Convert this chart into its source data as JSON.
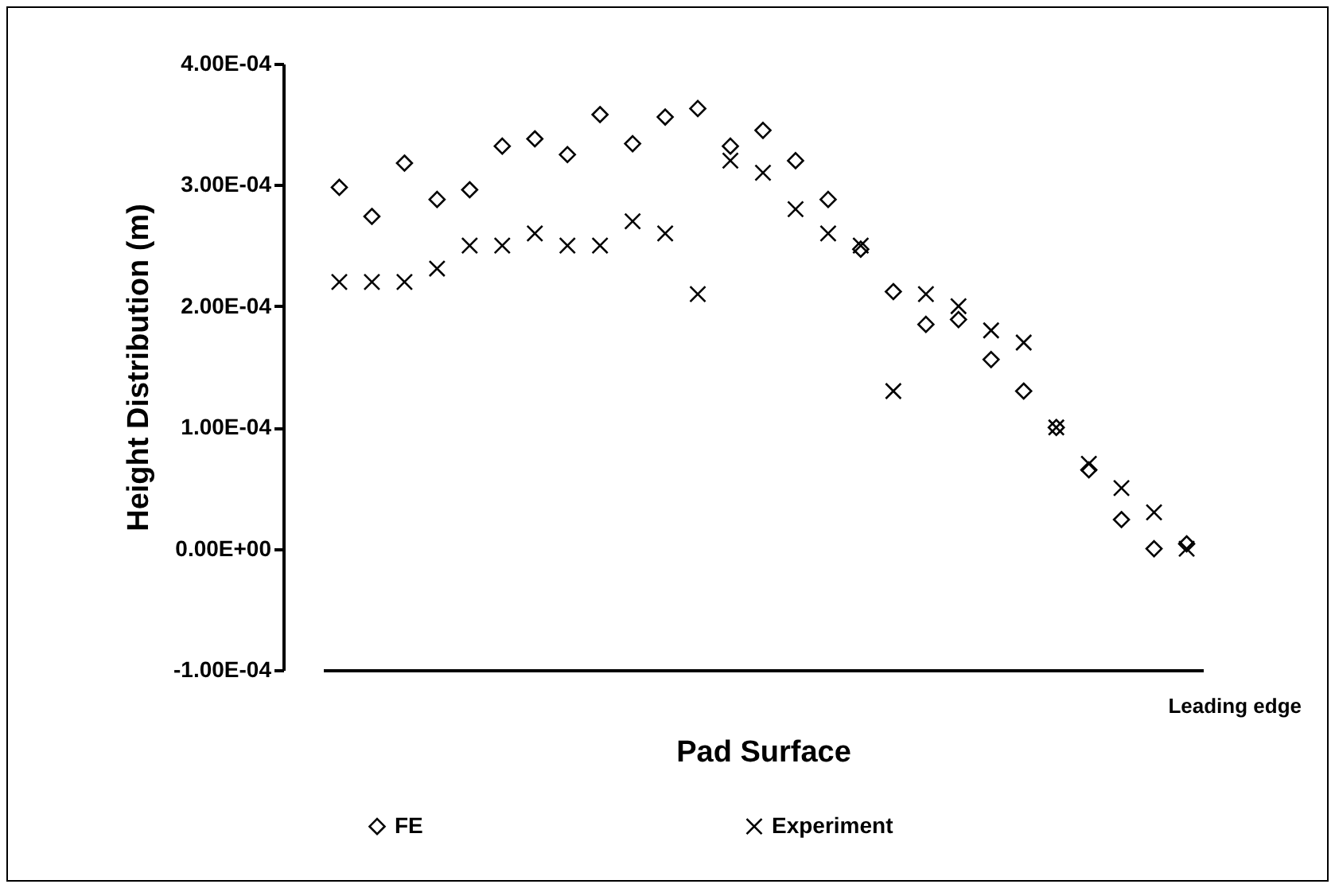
{
  "chart_data": {
    "type": "scatter",
    "xlabel": "Pad Surface",
    "ylabel": "Height Distribution (m)",
    "categories": [
      null,
      null,
      null,
      null,
      null,
      null,
      null,
      null,
      null,
      null,
      null,
      null,
      null,
      null,
      null,
      null,
      null,
      null,
      null,
      null,
      null,
      null,
      null,
      null,
      null,
      null,
      null
    ],
    "series": [
      {
        "name": "FE",
        "color": "#000000",
        "marker": "diamond",
        "values": [
          0.000298,
          0.000274,
          0.000318,
          0.000288,
          0.000296,
          0.000332,
          0.000338,
          0.000325,
          0.000358,
          0.000334,
          0.000356,
          0.000363,
          0.000332,
          0.000345,
          0.00032,
          0.000288,
          0.000247,
          0.000212,
          0.000185,
          0.000189,
          0.000156,
          0.00013,
          0.0001,
          6.5e-05,
          2.4e-05,
          0.0,
          4e-06
        ]
      },
      {
        "name": "Experiment",
        "color": "#000000",
        "marker": "cross",
        "values": [
          0.00022,
          0.00022,
          0.00022,
          0.000231,
          0.00025,
          0.00025,
          0.00026,
          0.00025,
          0.00025,
          0.00027,
          0.00026,
          0.00021,
          0.00032,
          0.00031,
          0.00028,
          0.00026,
          0.00025,
          0.00013,
          0.00021,
          0.0002,
          0.00018,
          0.00017,
          0.0001,
          7e-05,
          5e-05,
          3e-05,
          0.0
        ]
      }
    ],
    "ylim": [
      -0.0001,
      0.0004
    ],
    "yticks": [
      {
        "value": -0.0001,
        "label": "-1.00E-04"
      },
      {
        "value": 0,
        "label": "0.00E+00"
      },
      {
        "value": 0.0001,
        "label": "1.00E-04"
      },
      {
        "value": 0.0002,
        "label": "2.00E-04"
      },
      {
        "value": 0.0003,
        "label": "3.00E-04"
      },
      {
        "value": 0.0004,
        "label": "4.00E-04"
      }
    ],
    "annotations": [
      "Leading edge"
    ],
    "grid": false,
    "legend": "bottom"
  }
}
